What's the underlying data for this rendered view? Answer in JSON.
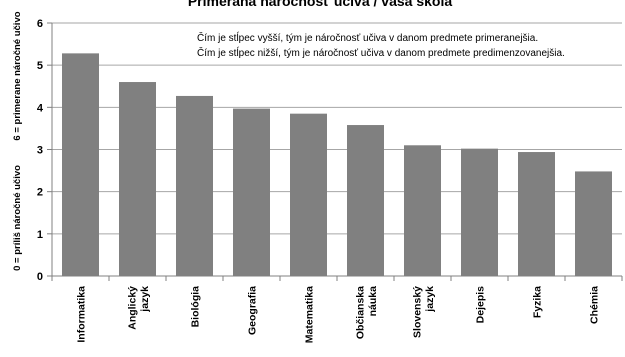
{
  "chart_data": {
    "type": "bar",
    "title": "Primeraná náročnosť učiva / vaša škola",
    "ylabel_line1": "0 = príliš náročné učivo",
    "ylabel_line2": "6 = primerane náročné učivo",
    "xlabel": "",
    "ylim": [
      0,
      6
    ],
    "yticks": [
      "0",
      "1",
      "2",
      "3",
      "4",
      "5",
      "6"
    ],
    "grid": true,
    "legend": "none",
    "bar_color": "#808080",
    "annotations": [
      "Čím je stĺpec vyšší, tým je náročnosť učiva v danom predmete primeranejšia.",
      "Čím je stĺpec nižší, tým je náročnosť učiva v danom predmete predimenzovanejšia."
    ],
    "categories": [
      [
        "Informatika"
      ],
      [
        "Anglický",
        "jazyk"
      ],
      [
        "Biológia"
      ],
      [
        "Geografia"
      ],
      [
        "Matematika"
      ],
      [
        "Občianska",
        "náuka"
      ],
      [
        "Slovenský",
        "jazyk"
      ],
      [
        "Dejepis"
      ],
      [
        "Fyzika"
      ],
      [
        "Chémia"
      ]
    ],
    "values": [
      5.28,
      4.6,
      4.27,
      3.97,
      3.85,
      3.58,
      3.1,
      3.02,
      2.94,
      2.48
    ]
  }
}
